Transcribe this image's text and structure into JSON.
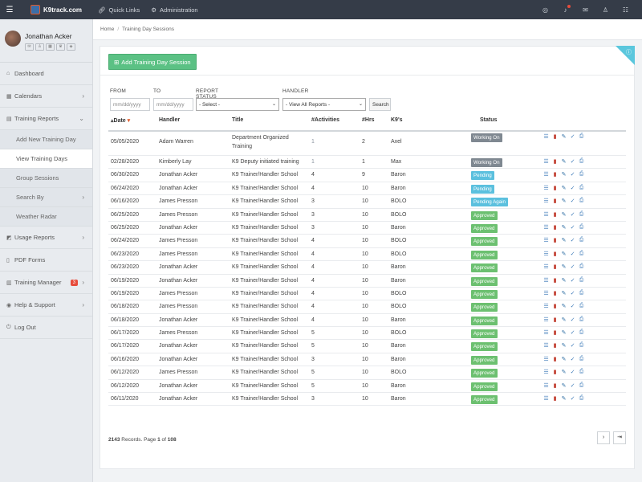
{
  "topbar": {
    "menu_icon": "hamburger-icon",
    "logo_text": "K9track.com",
    "links": [
      {
        "label": "Quick Links",
        "icon": "link-icon"
      },
      {
        "label": "Administration",
        "icon": "gear-icon"
      }
    ],
    "right_icons": [
      "globe-icon",
      "bell-icon",
      "mail-icon",
      "user-icon",
      "sliders-icon"
    ]
  },
  "sidebar": {
    "user_name": "Jonathan Acker",
    "items": [
      {
        "label": "Dashboard"
      },
      {
        "label": "Calendars"
      },
      {
        "label": "Training Reports"
      },
      {
        "label": "Add New Training Day"
      },
      {
        "label": "View Training Days"
      },
      {
        "label": "Group Sessions"
      },
      {
        "label": "Search By"
      },
      {
        "label": "Weather Radar"
      },
      {
        "label": "Usage Reports"
      },
      {
        "label": "PDF Forms"
      },
      {
        "label": "Training Manager",
        "badge": "3"
      },
      {
        "label": "Help & Support"
      },
      {
        "label": "Log Out"
      }
    ]
  },
  "breadcrumb": {
    "home": "Home",
    "current": "Training Day Sessions"
  },
  "add_button": "Add Training Day Session",
  "filters": {
    "from_label": "FROM",
    "to_label": "TO",
    "status_label": "REPORT STATUS",
    "handler_label": "HANDLER",
    "from_placeholder": "mm/dd/yyyy",
    "to_placeholder": "mm/dd/yyyy",
    "status_value": "- Select -",
    "handler_value": "- View All Reports -",
    "search_label": "Search"
  },
  "table": {
    "headers": [
      "Date",
      "Handler",
      "Title",
      "#Activities",
      "#Hrs",
      "K9's",
      "Status"
    ],
    "rows": [
      {
        "date": "05/05/2020",
        "handler": "Adam Warren",
        "title": "Department Organized Training",
        "activities": "1",
        "hrs": "2",
        "k9": "Axel",
        "status": "Working On"
      },
      {
        "date": "02/28/2020",
        "handler": "Kimberly Lay",
        "title": "K9 Deputy initiated training",
        "activities": "1",
        "hrs": "1",
        "k9": "Max",
        "status": "Working On"
      },
      {
        "date": "06/30/2020",
        "handler": "Jonathan Acker",
        "title": "K9 Trainer/Handler School",
        "activities": "4",
        "hrs": "9",
        "k9": "Baron",
        "status": "Pending"
      },
      {
        "date": "06/24/2020",
        "handler": "Jonathan Acker",
        "title": "K9 Trainer/Handler School",
        "activities": "4",
        "hrs": "10",
        "k9": "Baron",
        "status": "Pending"
      },
      {
        "date": "06/16/2020",
        "handler": "James Presson",
        "title": "K9 Trainer/Handler School",
        "activities": "3",
        "hrs": "10",
        "k9": "BOLO",
        "status": "Pending Again"
      },
      {
        "date": "06/25/2020",
        "handler": "James Presson",
        "title": "K9 Trainer/Handler School",
        "activities": "3",
        "hrs": "10",
        "k9": "BOLO",
        "status": "Approved"
      },
      {
        "date": "06/25/2020",
        "handler": "Jonathan Acker",
        "title": "K9 Trainer/Handler School",
        "activities": "3",
        "hrs": "10",
        "k9": "Baron",
        "status": "Approved"
      },
      {
        "date": "06/24/2020",
        "handler": "James Presson",
        "title": "K9 Trainer/Handler School",
        "activities": "4",
        "hrs": "10",
        "k9": "BOLO",
        "status": "Approved"
      },
      {
        "date": "06/23/2020",
        "handler": "James Presson",
        "title": "K9 Trainer/Handler School",
        "activities": "4",
        "hrs": "10",
        "k9": "BOLO",
        "status": "Approved"
      },
      {
        "date": "06/23/2020",
        "handler": "Jonathan Acker",
        "title": "K9 Trainer/Handler School",
        "activities": "4",
        "hrs": "10",
        "k9": "Baron",
        "status": "Approved"
      },
      {
        "date": "06/19/2020",
        "handler": "Jonathan Acker",
        "title": "K9 Trainer/Handler School",
        "activities": "4",
        "hrs": "10",
        "k9": "Baron",
        "status": "Approved"
      },
      {
        "date": "06/19/2020",
        "handler": "James Presson",
        "title": "K9 Trainer/Handler School",
        "activities": "4",
        "hrs": "10",
        "k9": "BOLO",
        "status": "Approved"
      },
      {
        "date": "06/18/2020",
        "handler": "James Presson",
        "title": "K9 Trainer/Handler School",
        "activities": "4",
        "hrs": "10",
        "k9": "BOLO",
        "status": "Approved"
      },
      {
        "date": "06/18/2020",
        "handler": "Jonathan Acker",
        "title": "K9 Trainer/Handler School",
        "activities": "4",
        "hrs": "10",
        "k9": "Baron",
        "status": "Approved"
      },
      {
        "date": "06/17/2020",
        "handler": "James Presson",
        "title": "K9 Trainer/Handler School",
        "activities": "5",
        "hrs": "10",
        "k9": "BOLO",
        "status": "Approved"
      },
      {
        "date": "06/17/2020",
        "handler": "Jonathan Acker",
        "title": "K9 Trainer/Handler School",
        "activities": "5",
        "hrs": "10",
        "k9": "Baron",
        "status": "Approved"
      },
      {
        "date": "06/16/2020",
        "handler": "Jonathan Acker",
        "title": "K9 Trainer/Handler School",
        "activities": "3",
        "hrs": "10",
        "k9": "Baron",
        "status": "Approved"
      },
      {
        "date": "06/12/2020",
        "handler": "James Presson",
        "title": "K9 Trainer/Handler School",
        "activities": "5",
        "hrs": "10",
        "k9": "BOLO",
        "status": "Approved"
      },
      {
        "date": "06/12/2020",
        "handler": "Jonathan Acker",
        "title": "K9 Trainer/Handler School",
        "activities": "5",
        "hrs": "10",
        "k9": "Baron",
        "status": "Approved"
      },
      {
        "date": "06/11/2020",
        "handler": "Jonathan Acker",
        "title": "K9 Trainer/Handler School",
        "activities": "3",
        "hrs": "10",
        "k9": "Baron",
        "status": "Approved"
      }
    ]
  },
  "footer": {
    "records": "2143",
    "records_text": "Records. Page",
    "page": "1",
    "of_text": "of",
    "total_pages": "108"
  },
  "colors": {
    "working_on": "#7f8891",
    "pending": "#5bc0de",
    "approved": "#6cc070"
  }
}
